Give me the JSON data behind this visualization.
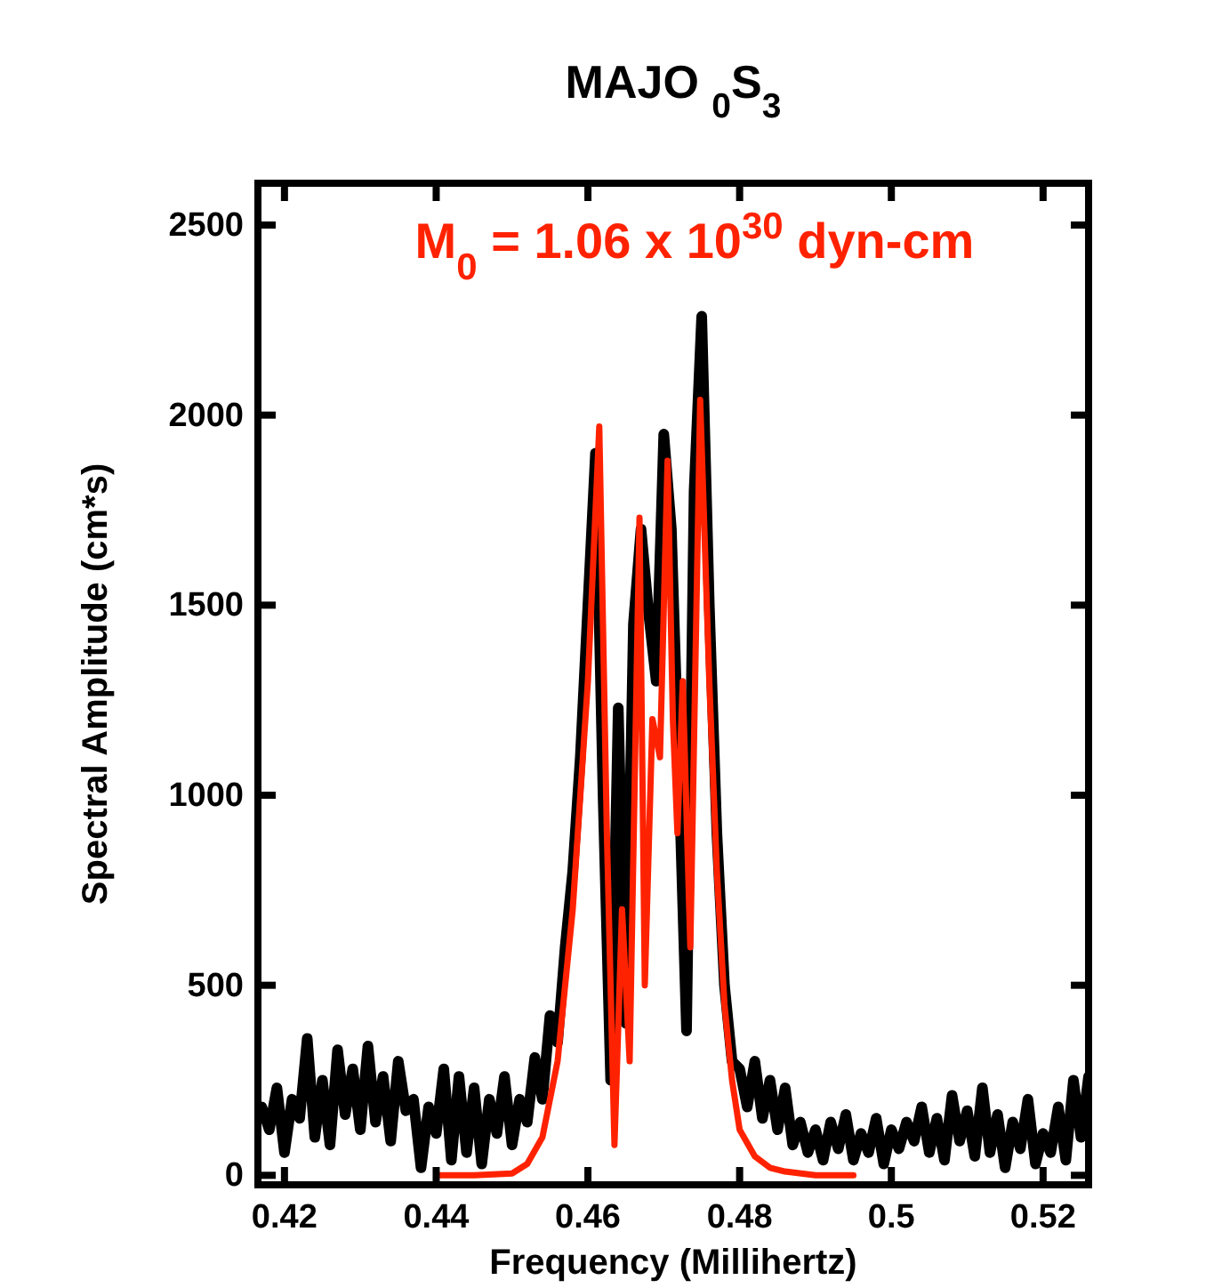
{
  "chart_data": {
    "type": "line",
    "title": "MAJO $_{0}$S$_{3}$",
    "xlabel": "Frequency (Millihertz)",
    "ylabel": "Spectral Amplitude (cm*s)",
    "annotations": [
      "M$_{0}$ = 1.06 x 10$^{30}$ dyn-cm"
    ],
    "xlim": [
      0.4165,
      0.526
    ],
    "xticks": [
      0.42,
      0.44,
      0.46,
      0.48,
      0.5,
      0.52
    ],
    "ylim": [
      -25,
      2610
    ],
    "yticks": [
      0,
      500,
      1000,
      1500,
      2000,
      2500
    ],
    "grid": false,
    "line_style": "solid",
    "marker": "none",
    "series": [
      {
        "color": "#000000",
        "x": [
          0.417,
          0.418,
          0.419,
          0.42,
          0.421,
          0.422,
          0.423,
          0.424,
          0.425,
          0.426,
          0.427,
          0.428,
          0.429,
          0.43,
          0.431,
          0.432,
          0.433,
          0.434,
          0.435,
          0.436,
          0.437,
          0.438,
          0.439,
          0.44,
          0.441,
          0.442,
          0.443,
          0.444,
          0.445,
          0.446,
          0.447,
          0.448,
          0.449,
          0.45,
          0.451,
          0.452,
          0.453,
          0.454,
          0.455,
          0.456,
          0.457,
          0.458,
          0.459,
          0.46,
          0.461,
          0.462,
          0.463,
          0.464,
          0.465,
          0.466,
          0.467,
          0.468,
          0.469,
          0.47,
          0.471,
          0.472,
          0.473,
          0.474,
          0.475,
          0.476,
          0.477,
          0.478,
          0.479,
          0.48,
          0.481,
          0.482,
          0.483,
          0.484,
          0.485,
          0.486,
          0.487,
          0.488,
          0.489,
          0.49,
          0.491,
          0.492,
          0.493,
          0.494,
          0.495,
          0.496,
          0.497,
          0.498,
          0.499,
          0.5,
          0.501,
          0.502,
          0.503,
          0.504,
          0.505,
          0.506,
          0.507,
          0.508,
          0.509,
          0.51,
          0.511,
          0.512,
          0.513,
          0.514,
          0.515,
          0.516,
          0.517,
          0.518,
          0.519,
          0.52,
          0.521,
          0.522,
          0.523,
          0.524,
          0.525,
          0.526
        ],
        "values": [
          180,
          120,
          230,
          60,
          200,
          150,
          360,
          100,
          250,
          80,
          330,
          160,
          280,
          120,
          340,
          140,
          260,
          90,
          300,
          170,
          200,
          20,
          180,
          110,
          280,
          40,
          260,
          60,
          230,
          30,
          200,
          110,
          260,
          80,
          200,
          140,
          310,
          200,
          420,
          350,
          600,
          800,
          1100,
          1500,
          1900,
          1000,
          250,
          1230,
          400,
          1450,
          1700,
          1480,
          1300,
          1950,
          1700,
          1050,
          380,
          1800,
          2260,
          1500,
          900,
          500,
          300,
          280,
          180,
          300,
          150,
          250,
          120,
          230,
          80,
          140,
          60,
          120,
          40,
          140,
          70,
          160,
          40,
          110,
          60,
          150,
          30,
          120,
          70,
          140,
          90,
          180,
          60,
          150,
          40,
          210,
          90,
          170,
          50,
          230,
          60,
          160,
          20,
          140,
          70,
          200,
          30,
          110,
          60,
          180,
          40,
          250,
          100,
          260
        ]
      },
      {
        "color": "#ff2200",
        "x": [
          0.44,
          0.445,
          0.45,
          0.452,
          0.454,
          0.456,
          0.458,
          0.46,
          0.4615,
          0.4625,
          0.4635,
          0.4645,
          0.4655,
          0.4668,
          0.4675,
          0.4685,
          0.4695,
          0.4705,
          0.4712,
          0.4718,
          0.4725,
          0.4735,
          0.4748,
          0.476,
          0.477,
          0.478,
          0.479,
          0.48,
          0.482,
          0.484,
          0.486,
          0.49,
          0.495
        ],
        "values": [
          0,
          0,
          5,
          30,
          100,
          300,
          700,
          1300,
          1970,
          900,
          80,
          700,
          300,
          1730,
          500,
          1200,
          1100,
          1880,
          1200,
          900,
          1300,
          600,
          2040,
          1300,
          800,
          450,
          250,
          120,
          50,
          20,
          10,
          0,
          0
        ]
      }
    ]
  }
}
